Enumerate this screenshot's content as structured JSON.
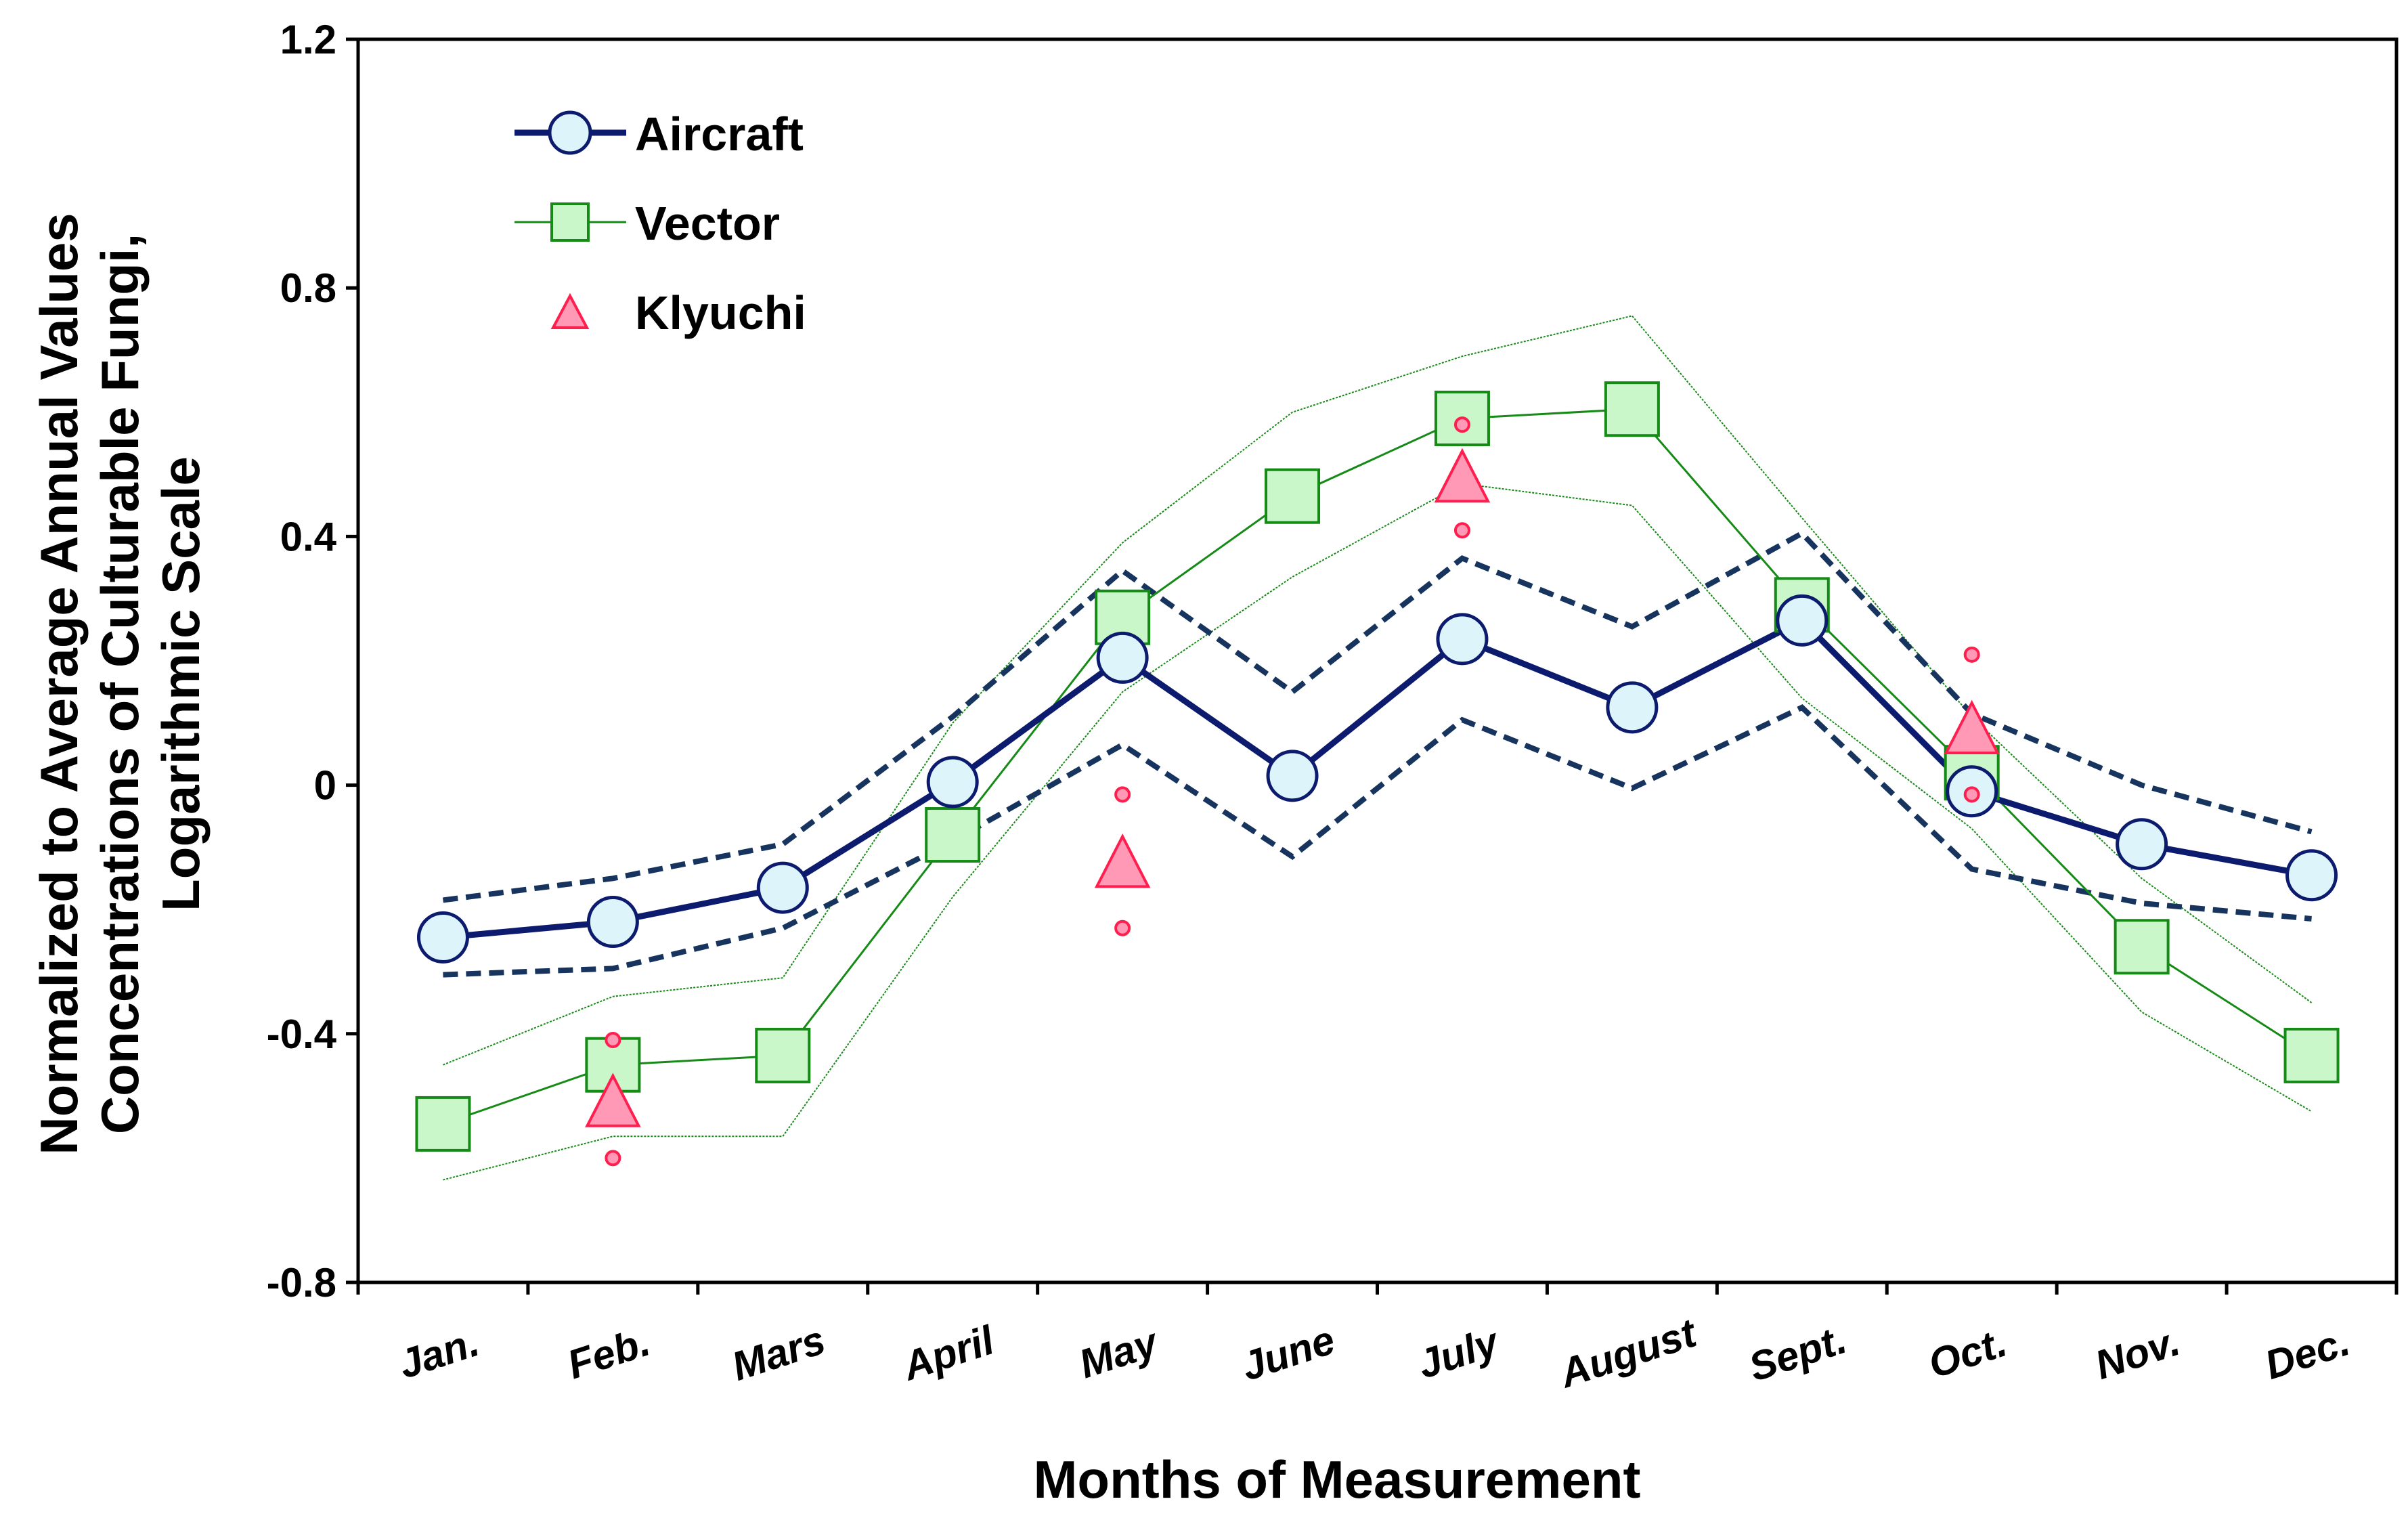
{
  "chart_data": {
    "type": "line",
    "title": "",
    "xlabel": "Months of Measurement",
    "ylabel_lines": [
      "Normalized to Average Annual Values",
      "Concentrations of Culturable Fungi,",
      "Logarithmic Scale"
    ],
    "ylim": [
      -0.8,
      1.2
    ],
    "yticks": [
      -0.8,
      -0.4,
      0,
      0.4,
      0.8,
      1.2
    ],
    "ytick_labels": [
      "-0.8",
      "-0.4",
      "0",
      "0.4",
      "0.8",
      "1.2"
    ],
    "categories": [
      "Jan.",
      "Feb.",
      "Mars",
      "April",
      "May",
      "June",
      "July",
      "August",
      "Sept.",
      "Oct.",
      "Nov.",
      "Dec."
    ],
    "legend_position": "top-left",
    "series": [
      {
        "name": "Aircraft",
        "marker": "circle",
        "color": "#0d1b6e",
        "fill": "#ddf5fa",
        "values": [
          -0.245,
          -0.22,
          -0.165,
          0.005,
          0.205,
          0.015,
          0.235,
          0.125,
          0.265,
          -0.01,
          -0.095,
          -0.145
        ],
        "upper_bound": [
          -0.185,
          -0.15,
          -0.095,
          0.11,
          0.345,
          0.15,
          0.365,
          0.255,
          0.405,
          0.115,
          0.0,
          -0.075
        ],
        "lower_bound": [
          -0.305,
          -0.295,
          -0.23,
          -0.09,
          0.065,
          -0.115,
          0.105,
          -0.005,
          0.125,
          -0.135,
          -0.19,
          -0.215
        ]
      },
      {
        "name": "Vector",
        "marker": "square",
        "color": "#168a16",
        "fill": "#c9f7c9",
        "values": [
          -0.545,
          -0.45,
          -0.435,
          -0.08,
          0.27,
          0.465,
          0.59,
          0.605,
          0.29,
          0.02,
          -0.26,
          -0.435
        ],
        "upper_bound": [
          -0.45,
          -0.34,
          -0.31,
          0.1,
          0.39,
          0.6,
          0.69,
          0.755,
          0.43,
          0.11,
          -0.15,
          -0.35
        ],
        "lower_bound": [
          -0.635,
          -0.565,
          -0.565,
          -0.18,
          0.15,
          0.335,
          0.485,
          0.45,
          0.14,
          -0.07,
          -0.365,
          -0.525
        ]
      },
      {
        "name": "Klyuchi",
        "marker": "triangle",
        "color": "#ff1f4f",
        "fill": "#ff99b5",
        "points": [
          {
            "category": "Feb.",
            "value": -0.51,
            "upper": -0.41,
            "lower": -0.6
          },
          {
            "category": "May",
            "value": -0.125,
            "upper": -0.015,
            "lower": -0.23
          },
          {
            "category": "July",
            "value": 0.495,
            "upper": 0.58,
            "lower": 0.41
          },
          {
            "category": "Oct.",
            "value": 0.09,
            "upper": 0.21,
            "lower": -0.015
          }
        ]
      }
    ]
  }
}
